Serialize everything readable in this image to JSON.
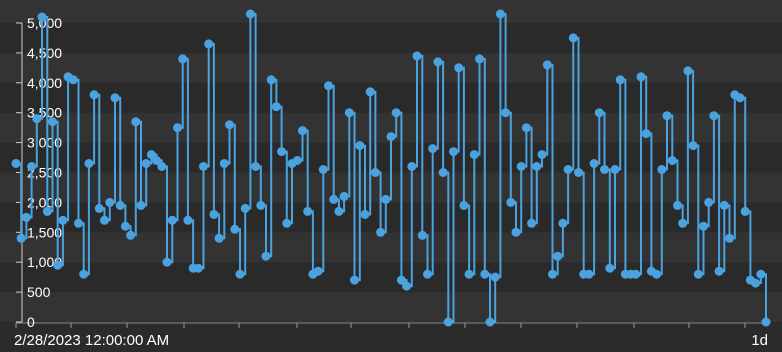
{
  "chart_data": {
    "type": "line",
    "step": true,
    "markers": true,
    "title": "",
    "xlabel": "",
    "ylabel": "",
    "x_start_label": "2/28/2023 12:00:00 AM",
    "x_end_label": "1d",
    "y_ticks": [
      "0",
      "500",
      "1,000",
      "1,500",
      "2,000",
      "2,500",
      "3,000",
      "3,500",
      "4,000",
      "4,500",
      "5,000"
    ],
    "ylim": [
      -200,
      5250
    ],
    "grid": "horizontal bands",
    "series": [
      {
        "color": "#4aa3df",
        "values": [
          2650,
          1400,
          1750,
          2600,
          3400,
          5100,
          1850,
          3350,
          950,
          1700,
          4100,
          4050,
          1650,
          800,
          2650,
          3800,
          1900,
          1700,
          2000,
          3750,
          1950,
          1600,
          1450,
          3350,
          1950,
          2650,
          2800,
          2700,
          2600,
          1000,
          1700,
          3250,
          4400,
          1700,
          900,
          900,
          2600,
          4650,
          1800,
          1400,
          2650,
          3300,
          1550,
          800,
          1900,
          5150,
          2600,
          1950,
          1100,
          4050,
          3600,
          2850,
          1650,
          2650,
          2700,
          3200,
          1850,
          800,
          850,
          2550,
          3950,
          2050,
          1850,
          2100,
          3500,
          700,
          2950,
          1800,
          3850,
          2500,
          1500,
          2050,
          3100,
          3500,
          700,
          600,
          2600,
          4450,
          1450,
          800,
          2900,
          4350,
          2500,
          0,
          2850,
          4250,
          1950,
          800,
          2800,
          4400,
          800,
          0,
          750,
          5150,
          3500,
          2000,
          1500,
          2600,
          3250,
          1650,
          2600,
          2800,
          4300,
          800,
          1100,
          1650,
          2550,
          4750,
          2500,
          800,
          800,
          2650,
          3500,
          2550,
          900,
          2550,
          4050,
          800,
          800,
          800,
          4100,
          3150,
          850,
          800,
          2550,
          3450,
          2700,
          1950,
          1650,
          4200,
          2950,
          800,
          1600,
          2000,
          3450,
          850,
          1950,
          1400,
          3800,
          3750,
          1850,
          700,
          650,
          800,
          0
        ]
      }
    ]
  }
}
